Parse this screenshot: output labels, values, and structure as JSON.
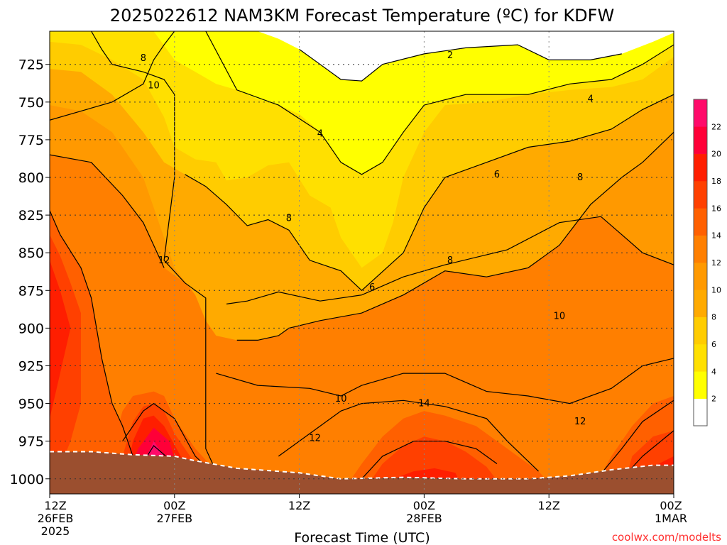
{
  "chart_data": {
    "type": "heatmap",
    "title": "2025022612 NAM3KM Forecast Temperature (ºC) for KDFW",
    "xlabel": "Forecast Time (UTC)",
    "ylabel": "",
    "credit": "coolwx.com/modelts",
    "x_ticks": [
      {
        "hours": 0,
        "l1": "12Z",
        "l2": "26FEB",
        "l3": "2025"
      },
      {
        "hours": 12,
        "l1": "00Z",
        "l2": "27FEB",
        "l3": ""
      },
      {
        "hours": 24,
        "l1": "12Z",
        "l2": "",
        "l3": ""
      },
      {
        "hours": 36,
        "l1": "00Z",
        "l2": "28FEB",
        "l3": ""
      },
      {
        "hours": 48,
        "l1": "12Z",
        "l2": "",
        "l3": ""
      },
      {
        "hours": 60,
        "l1": "00Z",
        "l2": "1MAR",
        "l3": ""
      }
    ],
    "xlim": [
      0,
      60
    ],
    "y_ticks": [
      725,
      750,
      775,
      800,
      825,
      850,
      875,
      900,
      925,
      950,
      975,
      1000
    ],
    "ylim": [
      703,
      1010
    ],
    "y_inverted": true,
    "grid": true,
    "colorbar": {
      "levels": [
        0,
        2,
        4,
        6,
        8,
        10,
        12,
        14,
        16,
        18,
        20,
        22,
        24
      ],
      "labels": [
        "2",
        "4",
        "6",
        "8",
        "10",
        "12",
        "14",
        "16",
        "18",
        "20",
        "22"
      ],
      "colors": [
        "#ffffff",
        "#ffff00",
        "#ffe000",
        "#ffcc00",
        "#ffaa00",
        "#ff9900",
        "#ff7f00",
        "#ff6000",
        "#ff4000",
        "#ff1e00",
        "#ff0038",
        "#ff0a6a"
      ],
      "placement": "right"
    },
    "ground_color": "#9b4f2f",
    "ground": [
      [
        0,
        982
      ],
      [
        4,
        982
      ],
      [
        8,
        984
      ],
      [
        12,
        985
      ],
      [
        14,
        988
      ],
      [
        18,
        993
      ],
      [
        24,
        996
      ],
      [
        28,
        1000
      ],
      [
        34,
        999
      ],
      [
        40,
        1000
      ],
      [
        46,
        1000
      ],
      [
        50,
        998
      ],
      [
        54,
        994
      ],
      [
        58,
        991
      ],
      [
        60,
        991
      ]
    ],
    "contour_labels": [
      {
        "t": 9,
        "p": 721,
        "label": "8"
      },
      {
        "t": 10,
        "p": 739,
        "label": "10"
      },
      {
        "t": 38.5,
        "p": 719,
        "label": "2"
      },
      {
        "t": 52,
        "p": 748,
        "label": "4"
      },
      {
        "t": 26,
        "p": 771,
        "label": "4"
      },
      {
        "t": 43,
        "p": 798,
        "label": "6"
      },
      {
        "t": 51,
        "p": 800,
        "label": "8"
      },
      {
        "t": 23,
        "p": 827,
        "label": "8"
      },
      {
        "t": 11,
        "p": 855,
        "label": "12"
      },
      {
        "t": 38.5,
        "p": 855,
        "label": "8"
      },
      {
        "t": 31,
        "p": 873,
        "label": "6"
      },
      {
        "t": 49,
        "p": 892,
        "label": "10"
      },
      {
        "t": 28,
        "p": 947,
        "label": "10"
      },
      {
        "t": 36,
        "p": 950,
        "label": "14"
      },
      {
        "t": 51,
        "p": 962,
        "label": "12"
      },
      {
        "t": 25.5,
        "p": 973,
        "label": "12"
      }
    ],
    "fill_bands": [
      {
        "level": 12,
        "path": "[[0,703],[60,703],[60,1010],[0,1010]]"
      },
      {
        "level": 10,
        "path": "[[0,703],[60,703],[60,858],[57,850],[55,838],[53,826],[49,830],[44,848],[38,858],[34,866],[30,878],[26,882],[24,880],[22,876],[19,882],[17,884],[15,878],[13,870],[11,860],[10,845],[9,830],[7,812],[4,790],[0,785]]"
      },
      {
        "level": 8,
        "path": "[[0,703],[60,703],[60,770],[57,790],[55,800],[52,818],[49,845],[46,860],[42,866],[38,862],[34,878],[30,890],[26,895],[23,900],[22,905],[20,908],[18,908],[16,905],[15,895],[14,878],[12,860],[11,840],[10,820],[9,800],[6,770],[3,756],[0,752]]"
      },
      {
        "level": 6,
        "path": "[[0,703],[60,703],[60,745],[57,755],[54,768],[50,776],[46,780],[42,790],[38,800],[36,820],[34,850],[30,875],[28,862],[25,855],[23,835],[21,828],[19,832],[17,818],[15,806],[13,798],[11,790],[9,770],[6,745],[3,730],[0,728]]"
      },
      {
        "level": 4,
        "path": "[[0,703],[60,703],[60,720],[57,735],[54,740],[50,742],[46,745],[42,750],[38,752],[36,770],[34,800],[33,830],[32,850],[30,860],[28,840],[27,820],[25,812],[23,790],[21,792],[19,800],[17,802],[16,790],[14,788],[12,780],[11,760],[9,735],[6,722],[3,712],[0,710]]"
      },
      {
        "level": 2,
        "path": "[[10,703],[60,703],[60,712],[57,725],[54,735],[50,738],[46,745],[40,745],[36,752],[34,770],[32,790],[30,798],[28,790],[26,770],[24,758],[22,752],[20,748],[18,742],[16,738],[14,730],[12,722]]"
      },
      {
        "level": 0,
        "path": "[[20,703],[60,703],[60,704],[58,710],[55,718],[52,722],[48,722],[45,712],[40,714],[36,718],[32,725],[30,736],[28,735],[26,725],[24,715],[22,708]]"
      },
      {
        "level": 14,
        "path": "[[0,822],[0,1010],[4,1010],[8,985],[7,965],[6,950],[5,920],[4,880],[3,860],[1,838]]"
      },
      {
        "level": 16,
        "path": "[[0,838],[0,1010],[2,975],[3,950],[3,920],[3,890],[2,870],[1,852]]"
      },
      {
        "level": 18,
        "path": "[[0,855],[0,960],[1,930],[2,900],[1,875]]"
      },
      {
        "level": 14,
        "path": "[[5,1010],[6,980],[7,955],[8,945],[10,942],[11,945],[12,960],[14,980],[16,995],[17,1010]]"
      },
      {
        "level": 16,
        "path": "[[6,1010],[7,985],[8,962],[9,952],[10,950],[11,955],[12,970],[14,990],[15,1010]]"
      },
      {
        "level": 18,
        "path": "[[7,1010],[8,975],[9,960],[10,958],[11,965],[13,990],[14,1010]]"
      },
      {
        "level": 20,
        "path": "[[7,1010],[8.5,980],[10,966],[11.5,975],[13,1010]]"
      },
      {
        "level": 22,
        "path": "[[8,1010],[9,990],[10,975],[11,985],[12,1010]]"
      },
      {
        "level": 14,
        "path": "[[28,1010],[30,990],[32,972],[34,960],[36,955],[38,958],[41,965],[44,980],[47,995],[49,1010]]"
      },
      {
        "level": 16,
        "path": "[[30,1010],[32,990],[34,978],[36,972],[38,975],[40,982],[42,992],[44,1010]]"
      },
      {
        "level": 18,
        "path": "[[32,1010],[33,1000],[35,995],[37,993],[39,996],[40,1010]]"
      },
      {
        "level": 14,
        "path": "[[52,1010],[54,985],[56,965],[58,950],[60,945],[60,1010]]"
      },
      {
        "level": 16,
        "path": "[[55,1010],[56,985],[58,972],[60,968],[60,1010]]"
      },
      {
        "level": 18,
        "path": "[[57,1010],[58,992],[60,985],[60,1010]]"
      }
    ],
    "contours": [
      "[[0,762],[3,756],[6,750],[9,738],[10,722],[11,712],[12,703]]",
      "[[4,703],[5,715],[6,725],[9,730],[11,735],[12,745],[12,800],[11,855],[13,870],[15,880],[15,980],[16,995]]",
      "[[0,785],[4,790],[7,812],[9,830],[10,845],[11,860]]",
      "[[0,822],[1,838],[3,860],[4,880],[5,920],[6,950],[7,965],[8,985]]",
      "[[15,703],[18,742],[22,752],[26,770],[28,790],[30,798],[32,790],[34,770],[36,752],[40,745],[46,745],[50,738],[54,735],[57,725],[60,712]]",
      "[[24,715],[26,725],[28,735],[30,736],[32,725],[36,718],[40,714],[45,712],[48,722],[52,722],[55,718]]",
      "[[13,798],[15,806],[17,818],[19,832],[21,828],[23,835],[25,855],[28,862],[30,875],[34,850],[36,820],[38,800],[42,790],[46,780],[50,776],[54,768],[57,755],[60,745]]",
      "[[18,908],[20,908],[22,905],[23,900],[26,895],[30,890],[34,878],[38,862],[42,866],[46,860],[49,845],[52,818],[55,800],[57,790],[60,770]]",
      "[[17,884],[19,882],[22,876],[26,882],[30,878],[34,866],[38,858],[44,848],[49,830],[53,826],[55,838],[57,850],[60,858]]",
      "[[16,930],[20,938],[25,940],[28,945],[30,938],[34,930],[38,930],[42,942],[46,945],[50,950],[54,940],[57,925],[60,920]]",
      "[[22,985],[25,970],[28,955],[30,950],[34,948],[38,952],[42,960],[44,975],[47,995]]",
      "[[30,1000],[32,985],[35,975],[38,975],[41,980],[43,990]]",
      "[[52,1005],[55,980],[57,962],[60,948]]",
      "[[55,1000],[57,985],[60,968]]",
      "[[7,975],[9,955],[10,950],[12,960],[14,985],[16,998]]",
      "[[8,1000],[10,978],[12,990]]"
    ]
  }
}
